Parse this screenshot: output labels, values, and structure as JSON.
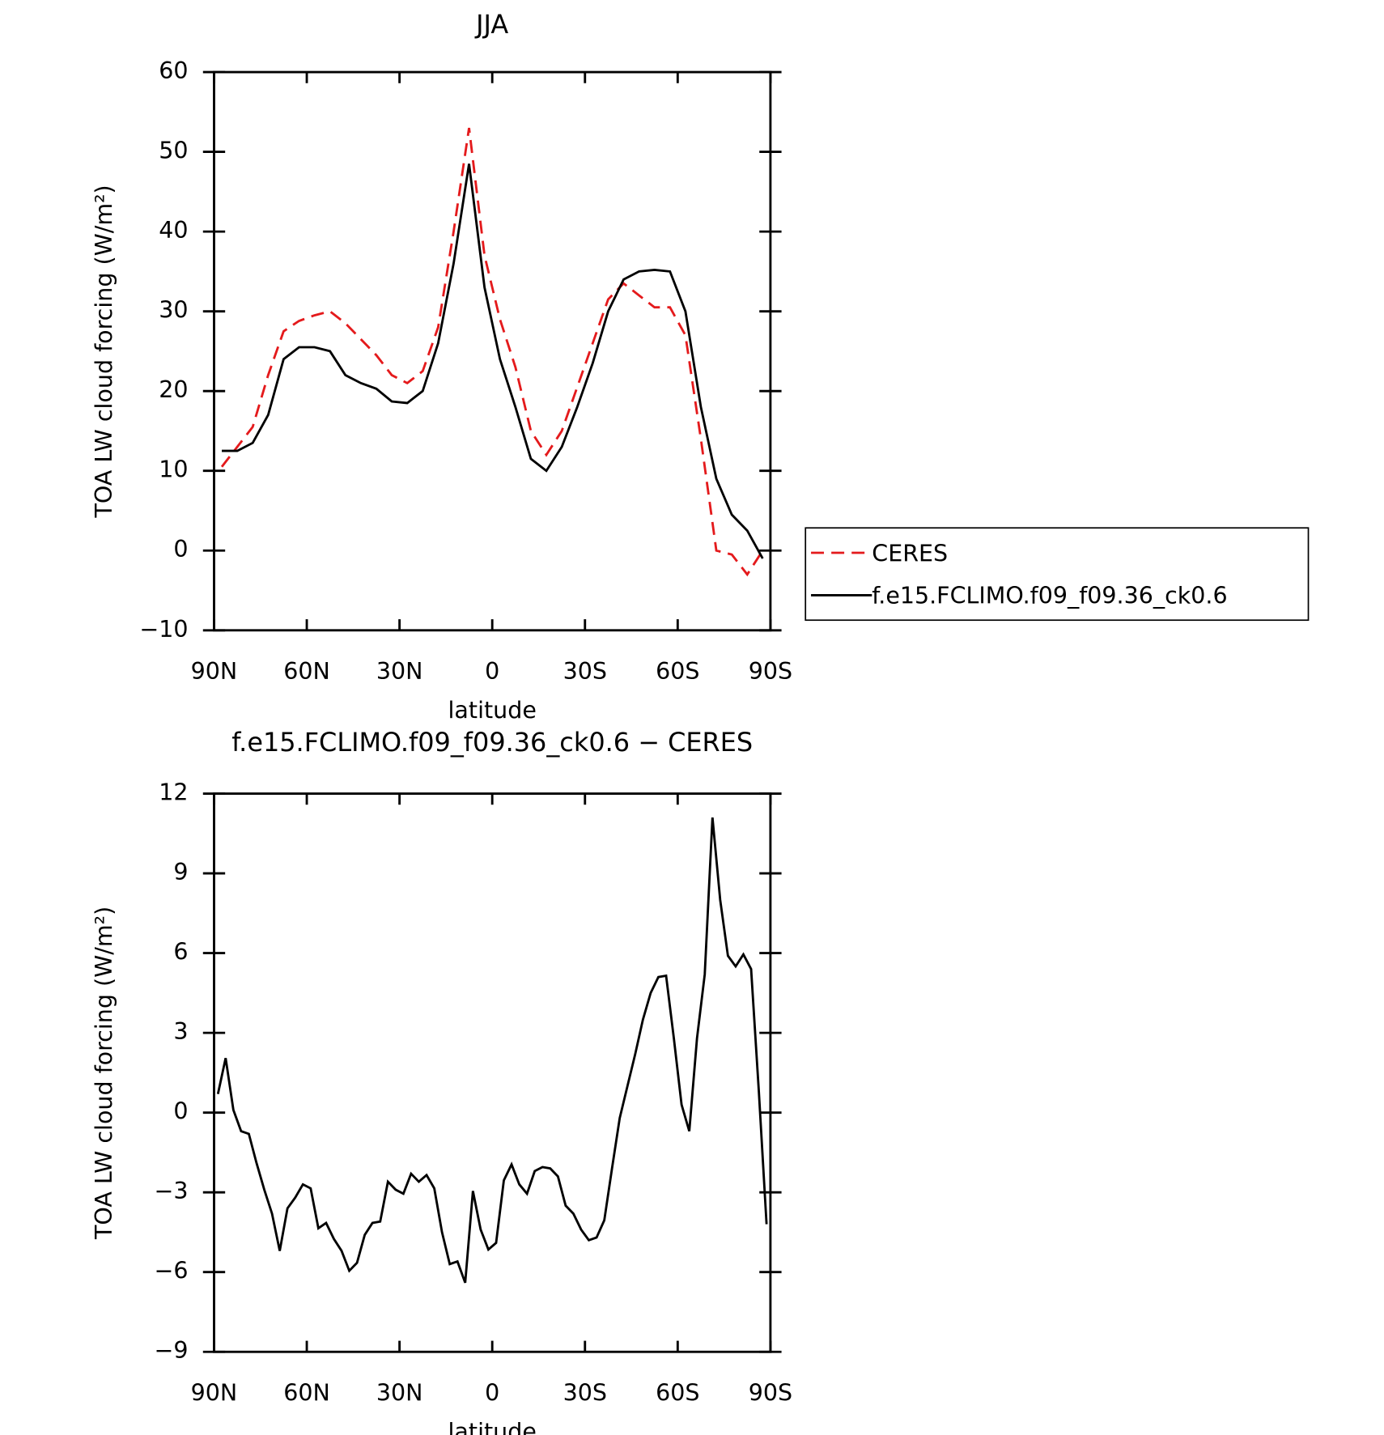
{
  "chart_data": [
    {
      "type": "line",
      "title": "JJA",
      "x_label": "latitude",
      "y_label": "TOA LW cloud forcing (W/m²)",
      "xlim": [
        90,
        -90
      ],
      "ylim": [
        -10,
        60
      ],
      "xticks": [
        {
          "value": 90,
          "label": "90N"
        },
        {
          "value": 60,
          "label": "60N"
        },
        {
          "value": 30,
          "label": "30N"
        },
        0,
        {
          "value": -30,
          "label": "30S"
        },
        {
          "value": -60,
          "label": "60S"
        },
        {
          "value": -90,
          "label": "90S"
        }
      ],
      "yticks": [
        60,
        50,
        40,
        30,
        20,
        10,
        0,
        {
          "value": -10,
          "label": "−10"
        }
      ],
      "x": [
        87.5,
        82.5,
        77.5,
        72.5,
        67.5,
        62.5,
        57.5,
        52.5,
        47.5,
        42.5,
        37.5,
        32.5,
        27.5,
        22.5,
        17.5,
        12.5,
        7.5,
        2.5,
        -2.5,
        -7.5,
        -12.5,
        -17.5,
        -22.5,
        -27.5,
        -32.5,
        -37.5,
        -42.5,
        -47.5,
        -52.5,
        -57.5,
        -62.5,
        -67.5,
        -72.5,
        -77.5,
        -82.5,
        -87.5
      ],
      "series": [
        {
          "name": "CERES",
          "color": "#e41a1c",
          "dashed": true,
          "values": [
            10.5,
            13,
            15.5,
            22,
            27.5,
            28.8,
            29.5,
            30,
            28.5,
            26.5,
            24.5,
            22,
            21,
            22.5,
            28,
            40,
            53,
            37,
            29,
            23,
            15,
            12,
            15,
            20.5,
            26,
            31.5,
            33.5,
            32,
            30.5,
            30.5,
            27,
            14,
            0,
            -0.5,
            -3,
            0
          ]
        },
        {
          "name": "f.e15.FCLIMO.f09_f09.36_ck0.6",
          "color": "#000000",
          "dashed": false,
          "values": [
            12.5,
            12.5,
            13.5,
            17,
            24,
            25.5,
            25.5,
            25,
            22,
            21,
            20.3,
            18.7,
            18.5,
            20,
            26,
            36,
            48.5,
            33,
            24,
            18,
            11.5,
            10,
            13,
            18,
            23.5,
            30,
            34,
            35,
            35.2,
            35,
            30,
            18,
            9,
            4.5,
            2.5,
            -1
          ]
        }
      ]
    },
    {
      "type": "line",
      "title": "f.e15.FCLIMO.f09_f09.36_ck0.6 − CERES",
      "x_label": "latitude",
      "y_label": "TOA LW cloud forcing (W/m²)",
      "xlim": [
        90,
        -90
      ],
      "ylim": [
        -9,
        12
      ],
      "xticks": [
        {
          "value": 90,
          "label": "90N"
        },
        {
          "value": 60,
          "label": "60N"
        },
        {
          "value": 30,
          "label": "30N"
        },
        0,
        {
          "value": -30,
          "label": "30S"
        },
        {
          "value": -60,
          "label": "60S"
        },
        {
          "value": -90,
          "label": "90S"
        }
      ],
      "yticks": [
        12,
        9,
        6,
        3,
        0,
        {
          "value": -3,
          "label": "−3"
        },
        {
          "value": -6,
          "label": "−6"
        },
        {
          "value": -9,
          "label": "−9"
        }
      ],
      "x": [
        88.75,
        86.25,
        83.75,
        81.25,
        78.75,
        76.25,
        73.75,
        71.25,
        68.75,
        66.25,
        63.75,
        61.25,
        58.75,
        56.25,
        53.75,
        51.25,
        48.75,
        46.25,
        43.75,
        41.25,
        38.75,
        36.25,
        33.75,
        31.25,
        28.75,
        26.25,
        23.75,
        21.25,
        18.75,
        16.25,
        13.75,
        11.25,
        8.75,
        6.25,
        3.75,
        1.25,
        -1.25,
        -3.75,
        -6.25,
        -8.75,
        -11.25,
        -13.75,
        -16.25,
        -18.75,
        -21.25,
        -23.75,
        -26.25,
        -28.75,
        -31.25,
        -33.75,
        -36.25,
        -38.75,
        -41.25,
        -43.75,
        -46.25,
        -48.75,
        -51.25,
        -53.75,
        -56.25,
        -58.75,
        -61.25,
        -63.75,
        -66.25,
        -68.75,
        -71.25,
        -73.75,
        -76.25,
        -78.75,
        -81.25,
        -83.75,
        -86.25,
        -88.75
      ],
      "series": [
        {
          "color": "#000000",
          "dashed": false,
          "values": [
            0.7,
            2.05,
            0.1,
            -0.7,
            -0.8,
            -1.9,
            -2.9,
            -3.8,
            -5.2,
            -3.6,
            -3.2,
            -2.7,
            -2.85,
            -4.35,
            -4.15,
            -4.75,
            -5.2,
            -5.95,
            -5.65,
            -4.6,
            -4.15,
            -4.1,
            -2.6,
            -2.9,
            -3.05,
            -2.3,
            -2.6,
            -2.35,
            -2.85,
            -4.5,
            -5.7,
            -5.6,
            -6.4,
            -2.95,
            -4.4,
            -5.15,
            -4.9,
            -2.55,
            -1.95,
            -2.7,
            -3.05,
            -2.2,
            -2.05,
            -2.1,
            -2.4,
            -3.5,
            -3.8,
            -4.4,
            -4.8,
            -4.7,
            -4.05,
            -2.1,
            -0.2,
            1.0,
            2.2,
            3.5,
            4.5,
            5.1,
            5.15,
            2.8,
            0.3,
            -0.7,
            2.8,
            5.2,
            11.1,
            8.0,
            5.9,
            5.5,
            5.95,
            5.4,
            0.8,
            -4.2
          ]
        }
      ]
    }
  ]
}
